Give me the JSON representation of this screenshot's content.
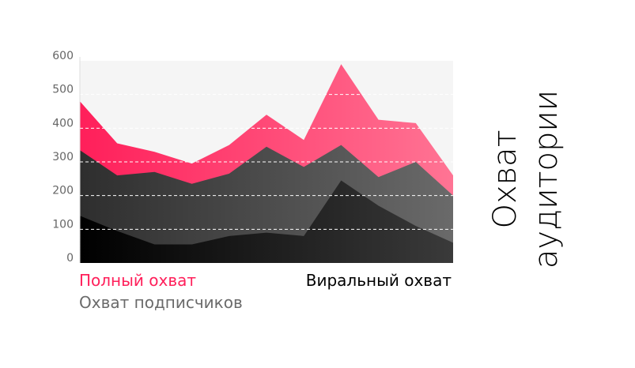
{
  "chart_data": {
    "type": "area",
    "title": "Охват аудитории",
    "series": [
      {
        "name": "Полный охват",
        "color": "#ff1f5a",
        "color_end": "#ff7494",
        "values": [
          480,
          355,
          330,
          295,
          350,
          440,
          365,
          590,
          425,
          415,
          260
        ]
      },
      {
        "name": "Охват подписчиков",
        "color": "#2e2e2e",
        "color_end": "#6a6a6a",
        "values": [
          335,
          260,
          270,
          235,
          265,
          345,
          285,
          350,
          255,
          300,
          200
        ]
      },
      {
        "name": "Виральный охват",
        "color": "#000000",
        "color_end": "#3a3a3a",
        "values": [
          140,
          95,
          55,
          55,
          80,
          90,
          80,
          245,
          170,
          110,
          60
        ]
      }
    ],
    "ylim": [
      0,
      600
    ],
    "yticks": [
      0,
      100,
      200,
      300,
      400,
      500,
      600
    ],
    "grid": true
  }
}
